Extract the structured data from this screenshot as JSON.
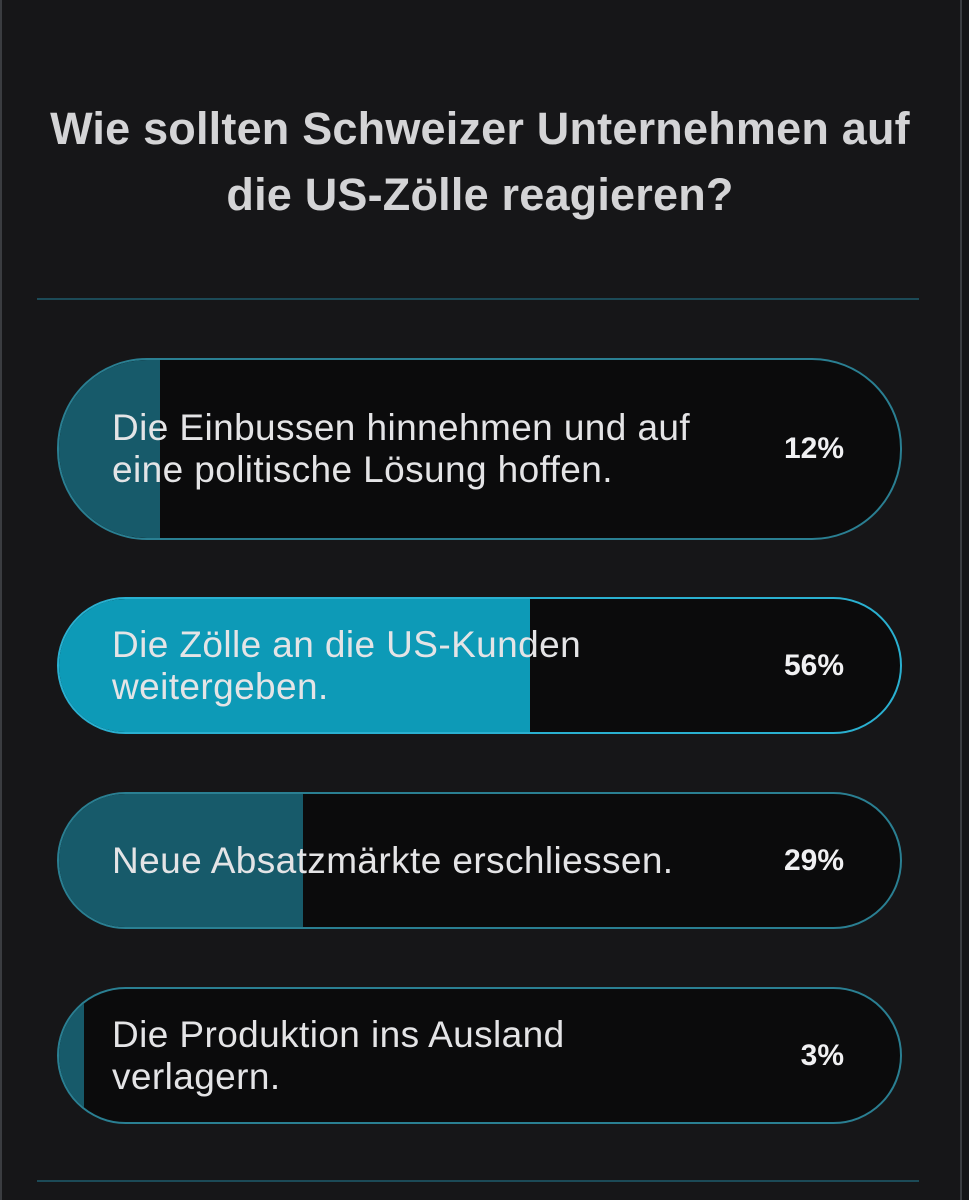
{
  "poll": {
    "question_line1": "Wie sollten Schweizer Unternehmen auf",
    "question_line2": "die US-Zölle reagieren?",
    "options": [
      {
        "label": "Die Einbussen hinnehmen und auf eine politische Lösung hoffen.",
        "percent_text": "12%",
        "percent": 12,
        "selected": false
      },
      {
        "label": "Die Zölle an die US-Kunden weitergeben.",
        "percent_text": "56%",
        "percent": 56,
        "selected": true
      },
      {
        "label": "Neue Absatzmärkte erschliessen.",
        "percent_text": "29%",
        "percent": 29,
        "selected": false
      },
      {
        "label": "Die Produktion ins Ausland verlagern.",
        "percent_text": "3%",
        "percent": 3,
        "selected": false
      }
    ]
  },
  "colors": {
    "background": "#141416",
    "bar_fill": "#175a6a",
    "bar_fill_selected": "#0d9ab7",
    "bar_border": "#2a7f92"
  }
}
